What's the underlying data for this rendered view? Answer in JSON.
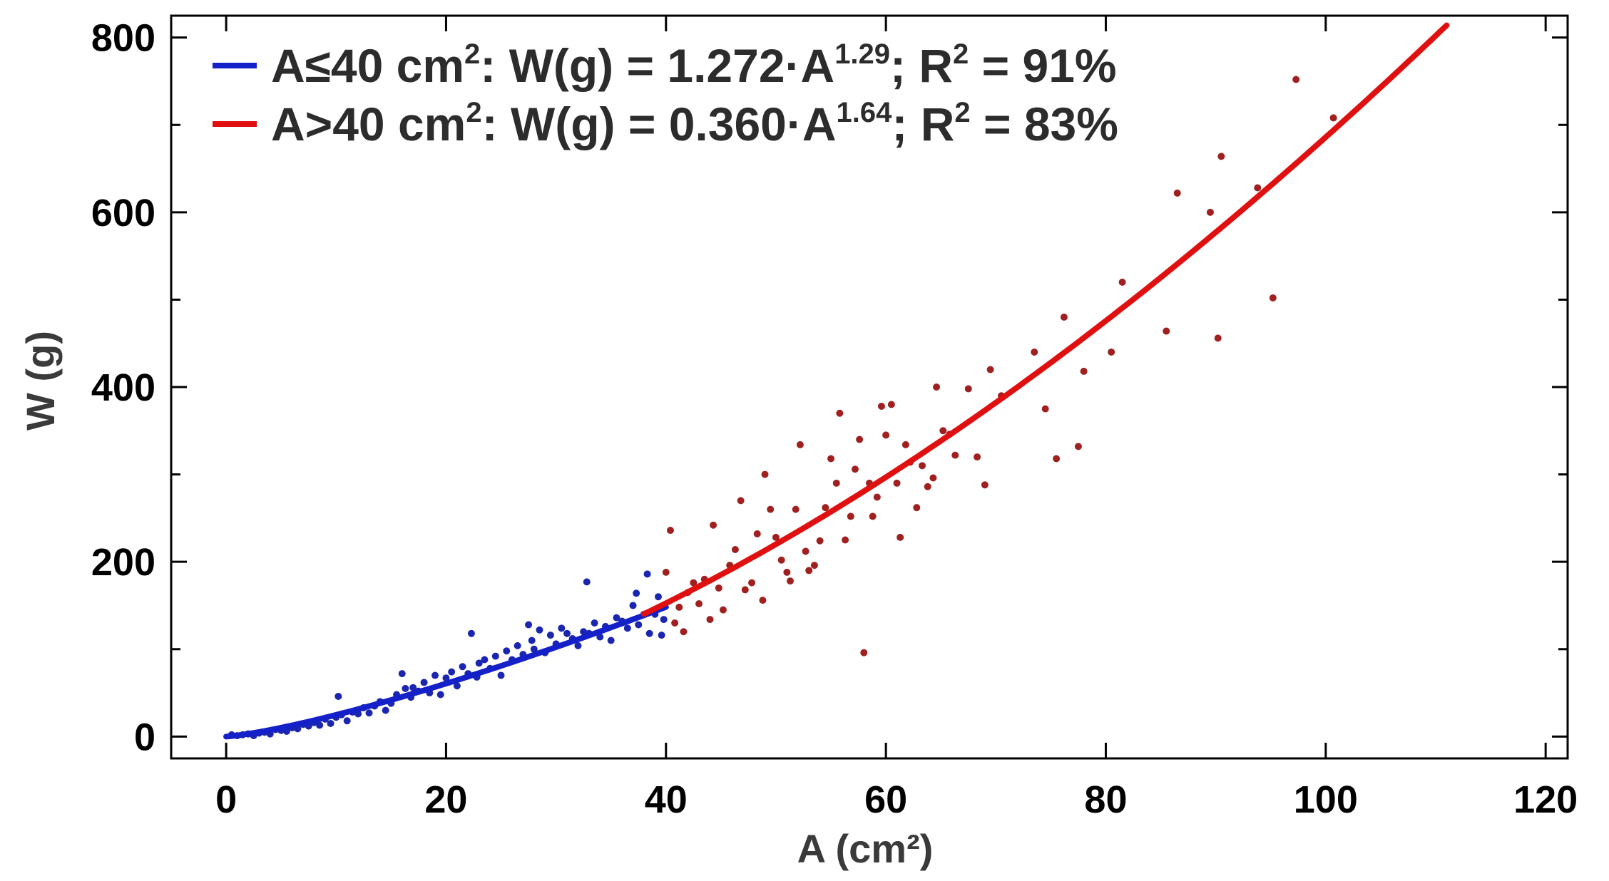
{
  "chart_data": {
    "type": "scatter",
    "title": "",
    "xlabel": "A (cm²)",
    "ylabel": "W (g)",
    "xlim": [
      -5,
      122
    ],
    "ylim": [
      -25,
      825
    ],
    "xticks": [
      0,
      20,
      40,
      60,
      80,
      100,
      120
    ],
    "yticks": [
      0,
      200,
      400,
      600,
      800
    ],
    "yminor_step": 100,
    "grid": false,
    "legend_position": "top-left",
    "legend": [
      {
        "name": "A≤40 cm2: W(g) = 1.272·A1.29; R2 = 91%",
        "color": "#1420c8"
      },
      {
        "name": "A>40 cm2: W(g) = 0.360·A1.64; R2 = 83%",
        "color": "#e01010"
      }
    ],
    "fits": [
      {
        "name": "A≤40 cm2",
        "a": 1.272,
        "b": 1.29,
        "x_range": [
          0,
          40
        ],
        "color": "#1420c8"
      },
      {
        "name": "A>40 cm2",
        "a": 0.36,
        "b": 1.64,
        "x_range": [
          38,
          111
        ],
        "color": "#e01010"
      }
    ],
    "series": [
      {
        "name": "A≤40 cm2",
        "color": "#1a26b0",
        "points": [
          [
            0.5,
            2
          ],
          [
            1.0,
            1
          ],
          [
            1.5,
            2
          ],
          [
            2.0,
            3
          ],
          [
            2.5,
            1
          ],
          [
            3.0,
            4
          ],
          [
            3.5,
            5
          ],
          [
            4.0,
            3
          ],
          [
            4.5,
            8
          ],
          [
            5.0,
            7
          ],
          [
            5.5,
            6
          ],
          [
            6.0,
            10
          ],
          [
            6.5,
            9
          ],
          [
            7.0,
            14
          ],
          [
            7.5,
            12
          ],
          [
            8.0,
            16
          ],
          [
            8.5,
            13
          ],
          [
            9.0,
            20
          ],
          [
            9.5,
            15
          ],
          [
            10.0,
            22
          ],
          [
            10.2,
            46
          ],
          [
            10.5,
            25
          ],
          [
            11.0,
            18
          ],
          [
            11.5,
            28
          ],
          [
            12.0,
            26
          ],
          [
            12.5,
            33
          ],
          [
            13.0,
            27
          ],
          [
            13.5,
            35
          ],
          [
            14.0,
            40
          ],
          [
            14.5,
            30
          ],
          [
            15.0,
            38
          ],
          [
            15.5,
            48
          ],
          [
            16.0,
            72
          ],
          [
            16.3,
            55
          ],
          [
            16.8,
            45
          ],
          [
            17.0,
            56
          ],
          [
            17.5,
            52
          ],
          [
            18.0,
            62
          ],
          [
            18.5,
            50
          ],
          [
            19.0,
            70
          ],
          [
            19.5,
            48
          ],
          [
            20.0,
            67
          ],
          [
            20.5,
            74
          ],
          [
            21.0,
            58
          ],
          [
            21.5,
            80
          ],
          [
            22.0,
            72
          ],
          [
            22.3,
            118
          ],
          [
            22.8,
            68
          ],
          [
            23.0,
            84
          ],
          [
            23.5,
            88
          ],
          [
            24.0,
            78
          ],
          [
            24.5,
            92
          ],
          [
            25.0,
            70
          ],
          [
            25.5,
            98
          ],
          [
            26.0,
            88
          ],
          [
            26.5,
            104
          ],
          [
            27.0,
            94
          ],
          [
            27.5,
            128
          ],
          [
            27.8,
            110
          ],
          [
            28.0,
            100
          ],
          [
            28.5,
            122
          ],
          [
            29.0,
            96
          ],
          [
            29.5,
            116
          ],
          [
            30.0,
            106
          ],
          [
            30.5,
            124
          ],
          [
            31.0,
            118
          ],
          [
            31.5,
            112
          ],
          [
            32.0,
            104
          ],
          [
            32.5,
            120
          ],
          [
            32.8,
            177
          ],
          [
            33.0,
            118
          ],
          [
            33.5,
            130
          ],
          [
            34.0,
            114
          ],
          [
            34.5,
            126
          ],
          [
            35.0,
            110
          ],
          [
            35.5,
            136
          ],
          [
            36.0,
            132
          ],
          [
            36.5,
            124
          ],
          [
            37.0,
            150
          ],
          [
            37.3,
            164
          ],
          [
            37.5,
            128
          ],
          [
            38.0,
            140
          ],
          [
            38.3,
            186
          ],
          [
            38.5,
            118
          ],
          [
            39.0,
            140
          ],
          [
            39.3,
            160
          ],
          [
            39.6,
            116
          ],
          [
            39.8,
            134
          ]
        ]
      },
      {
        "name": "A>40 cm2",
        "color": "#a02020",
        "points": [
          [
            40.0,
            188
          ],
          [
            40.4,
            236
          ],
          [
            40.8,
            130
          ],
          [
            41.2,
            148
          ],
          [
            41.6,
            120
          ],
          [
            42.0,
            165
          ],
          [
            42.5,
            176
          ],
          [
            43.0,
            152
          ],
          [
            43.5,
            180
          ],
          [
            44.0,
            134
          ],
          [
            44.3,
            242
          ],
          [
            44.8,
            170
          ],
          [
            45.2,
            145
          ],
          [
            45.8,
            196
          ],
          [
            46.3,
            214
          ],
          [
            46.8,
            270
          ],
          [
            47.2,
            168
          ],
          [
            47.8,
            176
          ],
          [
            48.3,
            232
          ],
          [
            48.8,
            156
          ],
          [
            49.0,
            300
          ],
          [
            49.5,
            260
          ],
          [
            50.0,
            228
          ],
          [
            50.5,
            202
          ],
          [
            51.0,
            188
          ],
          [
            51.3,
            178
          ],
          [
            51.8,
            260
          ],
          [
            52.2,
            334
          ],
          [
            52.7,
            212
          ],
          [
            53.0,
            190
          ],
          [
            53.5,
            196
          ],
          [
            54.0,
            224
          ],
          [
            54.5,
            262
          ],
          [
            55.0,
            318
          ],
          [
            55.5,
            290
          ],
          [
            55.8,
            370
          ],
          [
            56.3,
            225
          ],
          [
            56.8,
            252
          ],
          [
            57.2,
            306
          ],
          [
            57.6,
            340
          ],
          [
            58.0,
            96
          ],
          [
            58.5,
            290
          ],
          [
            58.8,
            252
          ],
          [
            59.2,
            274
          ],
          [
            59.6,
            378
          ],
          [
            60.0,
            345
          ],
          [
            60.5,
            380
          ],
          [
            61.0,
            290
          ],
          [
            61.3,
            228
          ],
          [
            61.8,
            334
          ],
          [
            62.2,
            314
          ],
          [
            62.8,
            262
          ],
          [
            63.3,
            310
          ],
          [
            63.8,
            286
          ],
          [
            64.3,
            296
          ],
          [
            64.6,
            400
          ],
          [
            65.2,
            350
          ],
          [
            65.8,
            346
          ],
          [
            66.3,
            322
          ],
          [
            67.5,
            398
          ],
          [
            68.3,
            320
          ],
          [
            69.0,
            288
          ],
          [
            69.5,
            420
          ],
          [
            70.5,
            390
          ],
          [
            73.5,
            440
          ],
          [
            74.5,
            375
          ],
          [
            75.5,
            318
          ],
          [
            76.2,
            480
          ],
          [
            77.5,
            332
          ],
          [
            78.0,
            418
          ],
          [
            80.5,
            440
          ],
          [
            81.5,
            520
          ],
          [
            85.5,
            464
          ],
          [
            86.5,
            622
          ],
          [
            89.5,
            600
          ],
          [
            90.2,
            456
          ],
          [
            90.5,
            664
          ],
          [
            93.8,
            628
          ],
          [
            95.2,
            502
          ],
          [
            97.3,
            752
          ],
          [
            100.7,
            708
          ]
        ]
      }
    ]
  }
}
